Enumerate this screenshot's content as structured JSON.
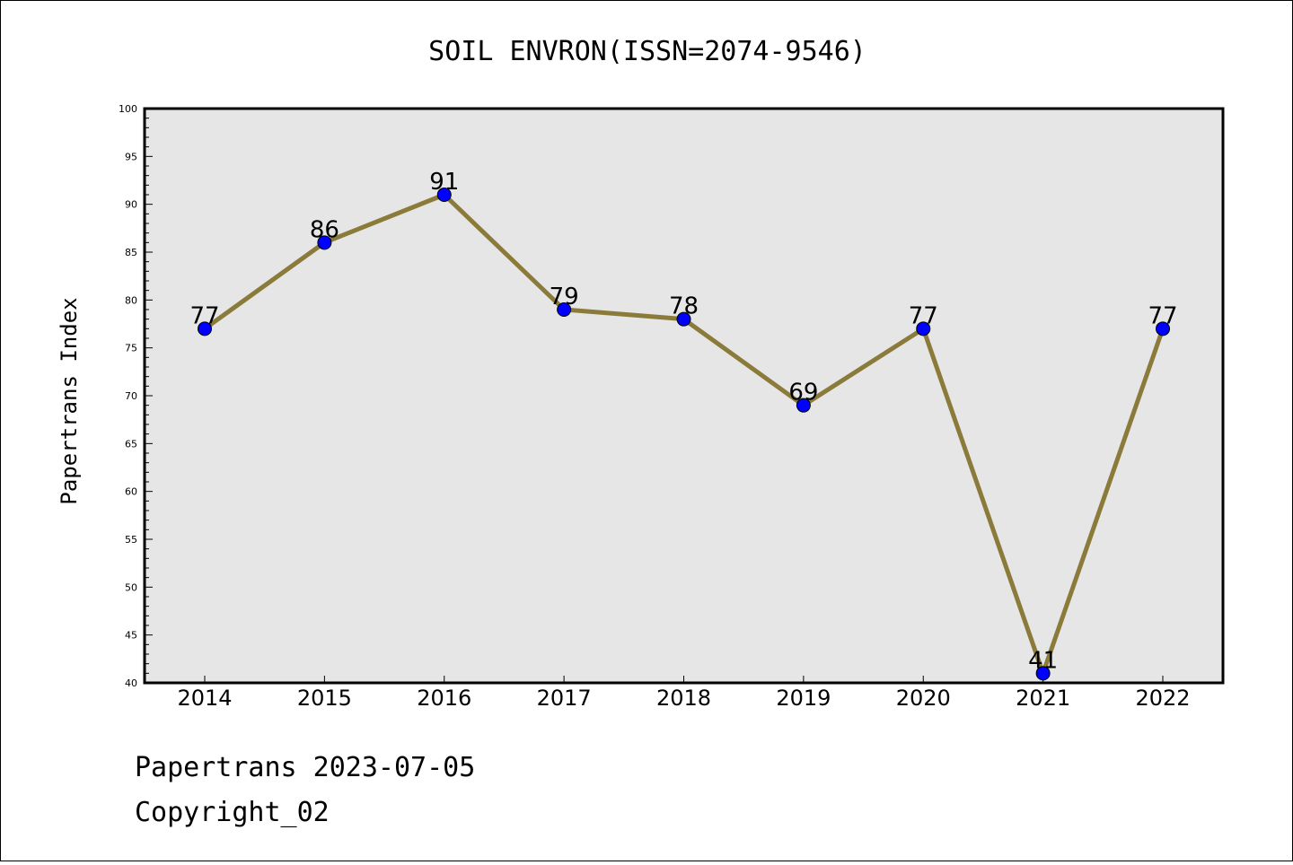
{
  "chart_data": {
    "type": "line",
    "title": "SOIL ENVRON(ISSN=2074-9546)",
    "xlabel": "",
    "ylabel": "Papertrans Index",
    "categories": [
      "2014",
      "2015",
      "2016",
      "2017",
      "2018",
      "2019",
      "2020",
      "2021",
      "2022"
    ],
    "values": [
      77,
      86,
      91,
      79,
      78,
      69,
      77,
      41,
      77
    ],
    "ylim": [
      40,
      100
    ],
    "yticks": [
      40,
      45,
      50,
      55,
      60,
      65,
      70,
      75,
      80,
      85,
      90,
      95,
      100
    ],
    "grid": false,
    "colors": {
      "line": "#8b7b3a",
      "marker": "#0000ff",
      "plot_background": "#e6e6e6"
    }
  },
  "footer": {
    "line1": "Papertrans 2023-07-05",
    "line2": "Copyright_02"
  }
}
